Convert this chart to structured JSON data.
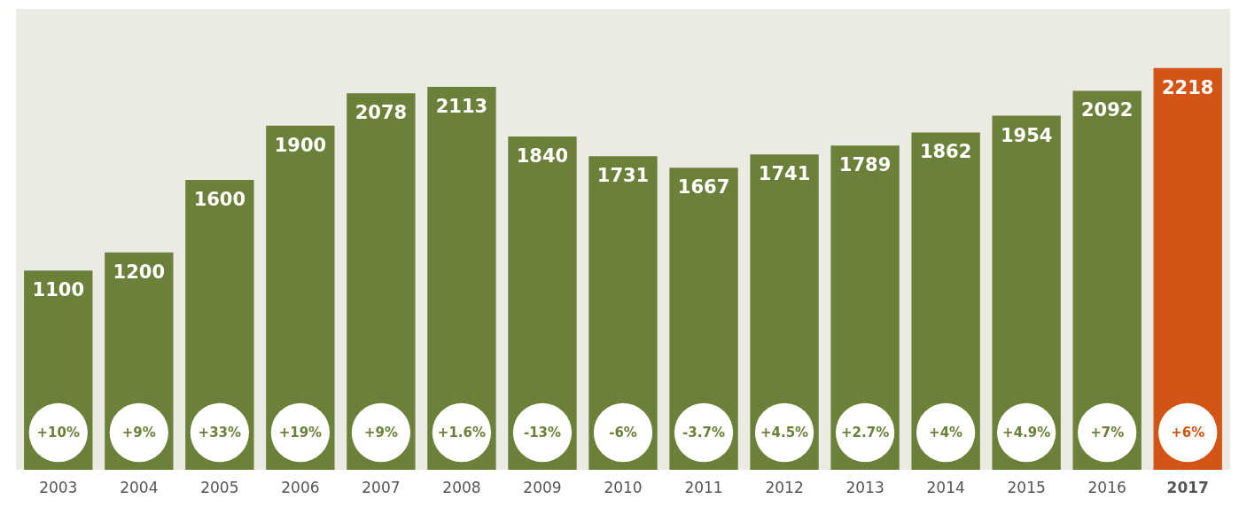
{
  "chart_data": {
    "type": "bar",
    "categories": [
      "2003",
      "2004",
      "2005",
      "2006",
      "2007",
      "2008",
      "2009",
      "2010",
      "2011",
      "2012",
      "2013",
      "2014",
      "2015",
      "2016",
      "2017"
    ],
    "values": [
      1100,
      1200,
      1600,
      1900,
      2078,
      2113,
      1840,
      1731,
      1667,
      1741,
      1789,
      1862,
      1954,
      2092,
      2218
    ],
    "colors": [
      "#6b8039",
      "#6b8039",
      "#6b8039",
      "#6b8039",
      "#6b8039",
      "#6b8039",
      "#6b8039",
      "#6b8039",
      "#6b8039",
      "#6b8039",
      "#6b8039",
      "#6b8039",
      "#6b8039",
      "#6b8039",
      "#d35414"
    ],
    "data_labels": true,
    "grid": false,
    "annotations": [
      "+10%",
      "+9%",
      "+33%",
      "+19%",
      "+9%",
      "+1.6%",
      "-13%",
      "-6%",
      "-3.7%",
      "+4.5%",
      "+2.7%",
      "+4%",
      "+4.9%",
      "+7%",
      "+6%"
    ]
  }
}
